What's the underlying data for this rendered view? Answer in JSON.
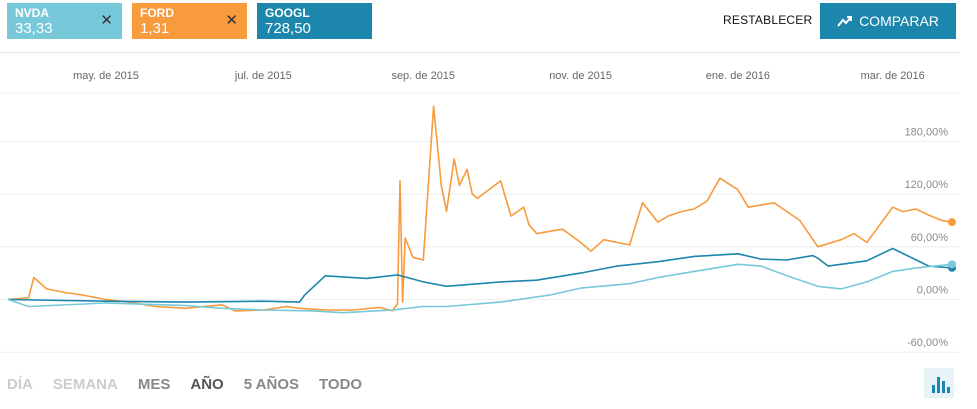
{
  "tickers": [
    {
      "symbol": "NVDA",
      "value": "33,33",
      "color": "#77c9d9",
      "close_icon": "close-icon"
    },
    {
      "symbol": "FORD",
      "value": "1,31",
      "color": "#f79b3d",
      "close_icon": "close-icon"
    },
    {
      "symbol": "GOOGL",
      "value": "728,50",
      "color": "#1d86ad"
    }
  ],
  "toolbar": {
    "reset_label": "RESTABLECER",
    "compare_label": "COMPARAR",
    "compare_icon": "trending-up-icon",
    "chart_type_icon": "bar-chart-icon"
  },
  "ranges": {
    "dia": "DÍA",
    "semana": "SEMANA",
    "mes": "MES",
    "ano": "AÑO",
    "cinco_anos": "5 AÑOS",
    "todo": "TODO",
    "active": "AÑO"
  },
  "chart_data": {
    "type": "line",
    "x_tick_labels": [
      "may. de 2015",
      "jul. de 2015",
      "sep. de 2015",
      "nov. de 2015",
      "ene. de 2016",
      "mar. de 2016"
    ],
    "x_tick_dates": [
      "2015-05-01",
      "2015-07-01",
      "2015-09-01",
      "2015-11-01",
      "2016-01-01",
      "2016-03-01"
    ],
    "x_range": [
      "2015-03-24",
      "2016-03-24"
    ],
    "y_tick_labels": [
      "180,00%",
      "120,00%",
      "60,00%",
      "0,00%",
      "-60,00%"
    ],
    "y_ticks": [
      180,
      120,
      60,
      0,
      -60
    ],
    "ylim": [
      -70,
      235
    ],
    "grid": true,
    "series": [
      {
        "name": "FORD",
        "color": "#f79b3d",
        "x": [
          "2015-03-24",
          "2015-04-01",
          "2015-04-03",
          "2015-04-08",
          "2015-04-15",
          "2015-04-22",
          "2015-05-01",
          "2015-05-10",
          "2015-05-20",
          "2015-06-01",
          "2015-06-15",
          "2015-06-20",
          "2015-07-01",
          "2015-07-10",
          "2015-07-15",
          "2015-07-25",
          "2015-08-05",
          "2015-08-15",
          "2015-08-20",
          "2015-08-22",
          "2015-08-23",
          "2015-08-24",
          "2015-08-25",
          "2015-08-28",
          "2015-09-01",
          "2015-09-05",
          "2015-09-08",
          "2015-09-10",
          "2015-09-13",
          "2015-09-15",
          "2015-09-18",
          "2015-09-20",
          "2015-09-22",
          "2015-10-01",
          "2015-10-05",
          "2015-10-10",
          "2015-10-12",
          "2015-10-15",
          "2015-10-25",
          "2015-11-01",
          "2015-11-05",
          "2015-11-10",
          "2015-11-20",
          "2015-11-25",
          "2015-12-01",
          "2015-12-05",
          "2015-12-10",
          "2015-12-15",
          "2015-12-20",
          "2015-12-25",
          "2016-01-01",
          "2016-01-05",
          "2016-01-15",
          "2016-01-20",
          "2016-01-25",
          "2016-02-01",
          "2016-02-10",
          "2016-02-15",
          "2016-02-20",
          "2016-02-25",
          "2016-03-01",
          "2016-03-05",
          "2016-03-10",
          "2016-03-15",
          "2016-03-20",
          "2016-03-24"
        ],
        "values": [
          0,
          2,
          25,
          12,
          8,
          5,
          0,
          -3,
          -8,
          -10,
          -6,
          -13,
          -12,
          -8,
          -10,
          -12,
          -12,
          -9,
          -13,
          -5,
          135,
          -3,
          70,
          48,
          45,
          220,
          130,
          100,
          160,
          130,
          148,
          120,
          115,
          135,
          95,
          105,
          85,
          75,
          80,
          65,
          55,
          68,
          62,
          110,
          88,
          95,
          100,
          103,
          112,
          138,
          125,
          105,
          110,
          100,
          90,
          60,
          68,
          75,
          65,
          85,
          105,
          100,
          103,
          96,
          90,
          88
        ],
        "marker": "end"
      },
      {
        "name": "GOOGL",
        "color": "#1d86ad",
        "x": [
          "2015-03-24",
          "2015-05-01",
          "2015-06-01",
          "2015-07-01",
          "2015-07-15",
          "2015-07-17",
          "2015-07-25",
          "2015-08-10",
          "2015-08-22",
          "2015-09-01",
          "2015-09-10",
          "2015-10-01",
          "2015-10-15",
          "2015-11-01",
          "2015-11-15",
          "2015-12-01",
          "2015-12-15",
          "2016-01-01",
          "2016-01-10",
          "2016-01-20",
          "2016-01-30",
          "2016-02-01",
          "2016-02-05",
          "2016-02-10",
          "2016-02-20",
          "2016-03-01",
          "2016-03-15",
          "2016-03-24"
        ],
        "values": [
          0,
          -2,
          -3,
          -2,
          -3,
          5,
          27,
          24,
          28,
          20,
          15,
          20,
          22,
          30,
          38,
          43,
          49,
          52,
          46,
          45,
          50,
          47,
          38,
          40,
          44,
          58,
          38,
          36
        ],
        "marker": "end"
      },
      {
        "name": "NVDA",
        "color": "#77c9d9",
        "x": [
          "2015-03-24",
          "2015-04-01",
          "2015-05-01",
          "2015-06-01",
          "2015-06-15",
          "2015-07-01",
          "2015-07-20",
          "2015-08-01",
          "2015-08-20",
          "2015-09-01",
          "2015-09-10",
          "2015-10-01",
          "2015-10-20",
          "2015-11-01",
          "2015-11-20",
          "2015-12-01",
          "2015-12-15",
          "2016-01-01",
          "2016-01-10",
          "2016-01-20",
          "2016-02-01",
          "2016-02-10",
          "2016-02-20",
          "2016-03-01",
          "2016-03-10",
          "2016-03-24"
        ],
        "values": [
          0,
          -8,
          -4,
          -7,
          -10,
          -12,
          -13,
          -15,
          -12,
          -8,
          -8,
          -3,
          5,
          13,
          18,
          25,
          32,
          40,
          38,
          27,
          15,
          12,
          20,
          32,
          36,
          40
        ],
        "marker": "end"
      }
    ]
  }
}
